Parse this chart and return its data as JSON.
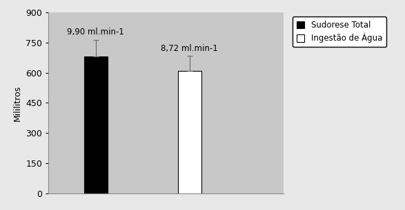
{
  "categories": [
    "Sudorese Total",
    "Ingestão de Água"
  ],
  "values": [
    680,
    610
  ],
  "errors": [
    85,
    75
  ],
  "bar_colors": [
    "#000000",
    "#ffffff"
  ],
  "bar_edgecolors": [
    "#000000",
    "#000000"
  ],
  "annotations": [
    "9,90 ml.min-1",
    "8,72 ml.min-1"
  ],
  "ylabel": "Mililitros",
  "ylim": [
    0,
    900
  ],
  "yticks": [
    0,
    150,
    300,
    450,
    600,
    750,
    900
  ],
  "background_color": "#d4d4d4",
  "plot_bg_color": "#c8c8c8",
  "outer_bg_color": "#e8e8e8",
  "legend_labels": [
    "Sudorese Total",
    "Ingestão de Água"
  ],
  "legend_colors": [
    "#000000",
    "#ffffff"
  ],
  "annotation_fontsize": 8.5,
  "ylabel_fontsize": 9,
  "tick_fontsize": 9,
  "bar_width": 0.25,
  "bar_positions": [
    1,
    2
  ],
  "xlim": [
    0.5,
    3.0
  ]
}
